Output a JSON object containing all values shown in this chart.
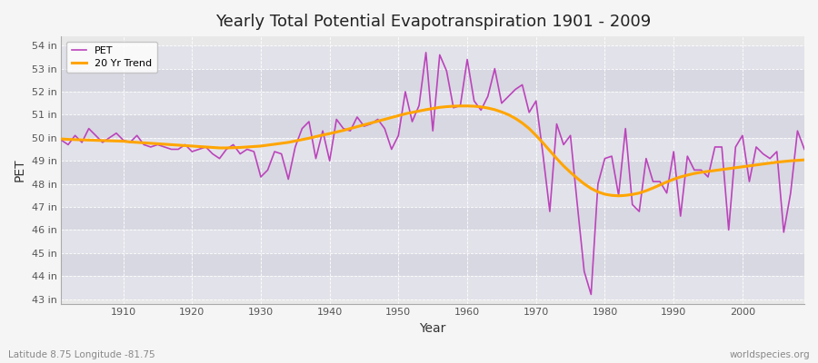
{
  "title": "Yearly Total Potential Evapotranspiration 1901 - 2009",
  "xlabel": "Year",
  "ylabel": "PET",
  "footnote_left": "Latitude 8.75 Longitude -81.75",
  "footnote_right": "worldspecies.org",
  "bg_outer": "#f0f0f0",
  "bg_inner": "#e8e8e8",
  "band_colors": [
    "#e0e0e8",
    "#d8d8e0"
  ],
  "pet_color": "#bb44bb",
  "trend_color": "#ffa500",
  "ylim": [
    42.8,
    54.4
  ],
  "yticks": [
    43,
    44,
    45,
    46,
    47,
    48,
    49,
    50,
    51,
    52,
    53,
    54
  ],
  "ytick_labels": [
    "43 in",
    "44 in",
    "45 in",
    "46 in",
    "47 in",
    "48 in",
    "49 in",
    "50 in",
    "51 in",
    "52 in",
    "53 in",
    "54 in"
  ],
  "xticks": [
    1910,
    1920,
    1930,
    1940,
    1950,
    1960,
    1970,
    1980,
    1990,
    2000
  ],
  "xlim": [
    1901,
    2009
  ],
  "years": [
    1901,
    1902,
    1903,
    1904,
    1905,
    1906,
    1907,
    1908,
    1909,
    1910,
    1911,
    1912,
    1913,
    1914,
    1915,
    1916,
    1917,
    1918,
    1919,
    1920,
    1921,
    1922,
    1923,
    1924,
    1925,
    1926,
    1927,
    1928,
    1929,
    1930,
    1931,
    1932,
    1933,
    1934,
    1935,
    1936,
    1937,
    1938,
    1939,
    1940,
    1941,
    1942,
    1943,
    1944,
    1945,
    1946,
    1947,
    1948,
    1949,
    1950,
    1951,
    1952,
    1953,
    1954,
    1955,
    1956,
    1957,
    1958,
    1959,
    1960,
    1961,
    1962,
    1963,
    1964,
    1965,
    1966,
    1967,
    1968,
    1969,
    1970,
    1971,
    1972,
    1973,
    1974,
    1975,
    1976,
    1977,
    1978,
    1979,
    1980,
    1981,
    1982,
    1983,
    1984,
    1985,
    1986,
    1987,
    1988,
    1989,
    1990,
    1991,
    1992,
    1993,
    1994,
    1995,
    1996,
    1997,
    1998,
    1999,
    2000,
    2001,
    2002,
    2003,
    2004,
    2005,
    2006,
    2007,
    2008,
    2009
  ],
  "pet_values": [
    49.9,
    49.7,
    50.1,
    49.8,
    50.4,
    50.1,
    49.8,
    50.0,
    50.2,
    49.9,
    49.8,
    50.1,
    49.7,
    49.6,
    49.7,
    49.6,
    49.5,
    49.5,
    49.7,
    49.4,
    49.5,
    49.6,
    49.3,
    49.1,
    49.5,
    49.7,
    49.3,
    49.5,
    49.4,
    48.3,
    48.6,
    49.4,
    49.3,
    48.2,
    49.6,
    50.4,
    50.7,
    49.1,
    50.3,
    49.0,
    50.8,
    50.4,
    50.3,
    50.9,
    50.5,
    50.6,
    50.8,
    50.4,
    49.5,
    50.1,
    52.0,
    50.7,
    51.4,
    53.7,
    50.3,
    53.6,
    52.9,
    51.3,
    51.4,
    53.4,
    51.6,
    51.2,
    51.8,
    53.0,
    51.5,
    51.8,
    52.1,
    52.3,
    51.1,
    51.6,
    49.3,
    46.8,
    50.6,
    49.7,
    50.1,
    47.1,
    44.2,
    43.2,
    48.0,
    49.1,
    49.2,
    47.5,
    50.4,
    47.1,
    46.8,
    49.1,
    48.1,
    48.1,
    47.6,
    49.4,
    46.6,
    49.2,
    48.6,
    48.6,
    48.3,
    49.6,
    49.6,
    46.0,
    49.6,
    50.1,
    48.1,
    49.6,
    49.3,
    49.1,
    49.4,
    45.9,
    47.6,
    50.3,
    49.5
  ],
  "trend_values": [
    49.95,
    49.93,
    49.92,
    49.91,
    49.9,
    49.89,
    49.88,
    49.87,
    49.86,
    49.85,
    49.82,
    49.8,
    49.78,
    49.76,
    49.74,
    49.72,
    49.7,
    49.68,
    49.66,
    49.64,
    49.62,
    49.6,
    49.58,
    49.56,
    49.56,
    49.57,
    49.58,
    49.6,
    49.62,
    49.64,
    49.68,
    49.72,
    49.76,
    49.8,
    49.86,
    49.92,
    49.98,
    50.05,
    50.12,
    50.18,
    50.25,
    50.32,
    50.4,
    50.48,
    50.56,
    50.64,
    50.72,
    50.8,
    50.88,
    50.96,
    51.04,
    51.1,
    51.16,
    51.22,
    51.27,
    51.32,
    51.35,
    51.37,
    51.38,
    51.38,
    51.37,
    51.34,
    51.29,
    51.22,
    51.12,
    51.0,
    50.84,
    50.64,
    50.4,
    50.1,
    49.78,
    49.44,
    49.1,
    48.78,
    48.5,
    48.24,
    48.0,
    47.8,
    47.65,
    47.55,
    47.5,
    47.48,
    47.5,
    47.54,
    47.6,
    47.7,
    47.82,
    47.95,
    48.08,
    48.2,
    48.3,
    48.38,
    48.45,
    48.5,
    48.54,
    48.58,
    48.62,
    48.66,
    48.7,
    48.74,
    48.78,
    48.82,
    48.86,
    48.9,
    48.94,
    48.97,
    49.0,
    49.02,
    49.04
  ]
}
